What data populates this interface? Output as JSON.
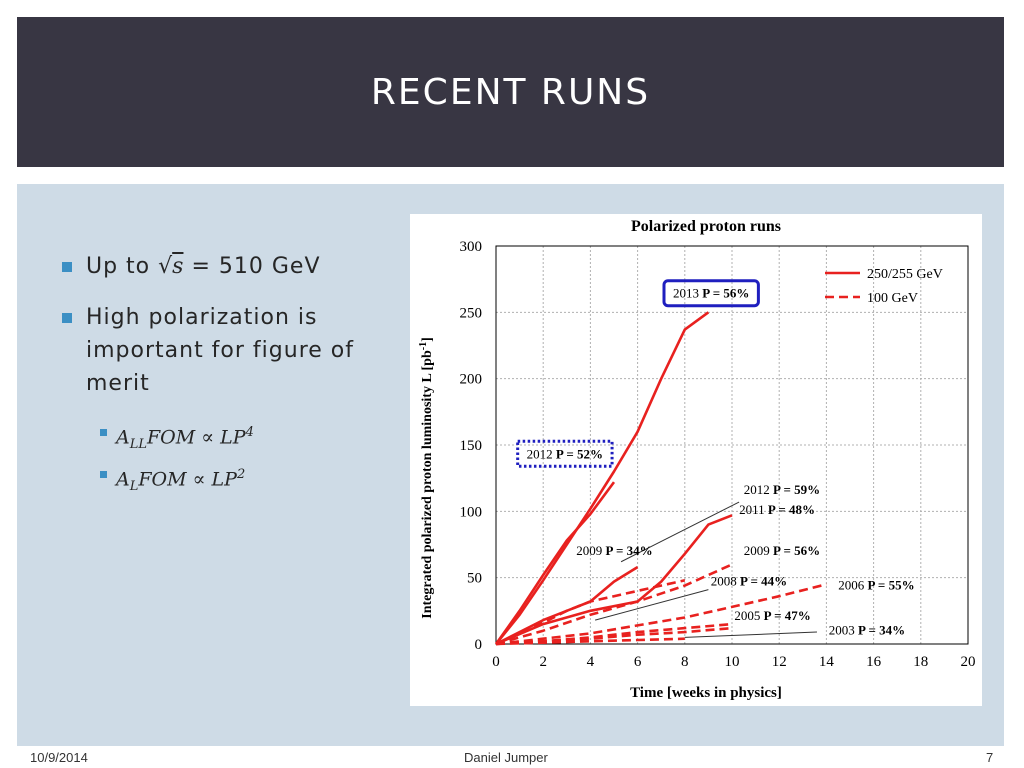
{
  "slide": {
    "title": "Recent Runs",
    "bullets": {
      "b1_prefix": "Up to ",
      "b1_sqrt_arg": "s",
      "b1_rest": " = 510 GeV",
      "b2_text": "High polarization is important for figure of merit",
      "sub1": {
        "var": "A",
        "sub": "LL",
        "mid": "FOM ∝ LP",
        "exp": "4"
      },
      "sub2": {
        "var": "A",
        "sub": "L",
        "mid": "FOM  ∝ LP",
        "exp": "2"
      }
    },
    "footer": {
      "date": "10/9/2014",
      "author": "Daniel Jumper",
      "page": "7"
    }
  },
  "chart_data": {
    "type": "line",
    "title": "Polarized proton runs",
    "xlabel": "Time [weeks in physics]",
    "ylabel": "Integrated polarized proton luminosity L [pb",
    "ylabel_sup": "-1",
    "ylabel_end": "]",
    "xlim": [
      0,
      20
    ],
    "ylim": [
      0,
      300
    ],
    "xticks": [
      0,
      2,
      4,
      6,
      8,
      10,
      12,
      14,
      16,
      18,
      20
    ],
    "yticks": [
      0,
      50,
      100,
      150,
      200,
      250,
      300
    ],
    "grid": true,
    "legend": {
      "placement": "top-right",
      "entries": [
        {
          "label": "250/255 GeV",
          "style": "solid"
        },
        {
          "label": "100 GeV",
          "style": "dashed"
        }
      ]
    },
    "color": "#e8211f",
    "series": [
      {
        "year": "2013",
        "style": "solid",
        "x": [
          0,
          1,
          2,
          3,
          4,
          5,
          6,
          7,
          8,
          9
        ],
        "y": [
          0,
          22,
          48,
          75,
          102,
          130,
          160,
          200,
          237,
          250
        ]
      },
      {
        "year": "2012",
        "style": "solid",
        "x": [
          0,
          1,
          2,
          3,
          4,
          5
        ],
        "y": [
          0,
          25,
          52,
          78,
          98,
          122
        ]
      },
      {
        "year": "2011",
        "style": "solid",
        "x": [
          0,
          2,
          4,
          6,
          7,
          8,
          9,
          10
        ],
        "y": [
          0,
          15,
          25,
          32,
          47,
          68,
          90,
          97
        ]
      },
      {
        "year": "2009",
        "style": "solid",
        "x": [
          0,
          2,
          3,
          4,
          5,
          6
        ],
        "y": [
          0,
          18,
          25,
          32,
          47,
          58
        ]
      },
      {
        "year": "2012",
        "style": "dashed",
        "x": [
          0,
          2,
          4,
          6,
          8,
          10
        ],
        "y": [
          0,
          10,
          22,
          32,
          44,
          60
        ]
      },
      {
        "year": "2009",
        "style": "dashed",
        "x": [
          0,
          1,
          2,
          3,
          4,
          6,
          8
        ],
        "y": [
          0,
          8,
          16,
          25,
          32,
          40,
          48
        ]
      },
      {
        "year": "2006",
        "style": "dashed",
        "x": [
          0,
          2,
          4,
          6,
          8,
          10,
          12,
          14
        ],
        "y": [
          0,
          4,
          8,
          14,
          20,
          28,
          36,
          45
        ]
      },
      {
        "year": "2008",
        "style": "dashed",
        "x": [
          0,
          2,
          4,
          6,
          8,
          10
        ],
        "y": [
          0,
          2,
          5,
          9,
          12,
          15
        ]
      },
      {
        "year": "2005",
        "style": "dashed",
        "x": [
          0,
          2,
          4,
          6,
          8,
          10
        ],
        "y": [
          0,
          2,
          4,
          7,
          9,
          12
        ]
      },
      {
        "year": "2003",
        "style": "dashed",
        "x": [
          0,
          2,
          4,
          6,
          8
        ],
        "y": [
          0,
          1,
          2,
          3,
          4
        ]
      }
    ],
    "annotations": [
      {
        "year": "2013",
        "pol": "P = 56%",
        "x": 7.5,
        "y": 261,
        "box": "solid"
      },
      {
        "year": "2012",
        "pol": "P = 52%",
        "x": 1.3,
        "y": 140,
        "box": "dotted"
      },
      {
        "year": "2012",
        "pol": "P = 59%",
        "x": 10.5,
        "y": 113,
        "leader": [
          [
            10.3,
            107
          ],
          [
            5.3,
            62
          ]
        ]
      },
      {
        "year": "2011",
        "pol": "P = 48%",
        "x": 10.3,
        "y": 98
      },
      {
        "year": "2009",
        "pol": "P = 34%",
        "x": 3.4,
        "y": 67
      },
      {
        "year": "2009",
        "pol": "P = 56%",
        "x": 10.5,
        "y": 67
      },
      {
        "year": "2008",
        "pol": "P = 44%",
        "x": 9.1,
        "y": 44,
        "leader": [
          [
            9.0,
            41
          ],
          [
            4.2,
            18
          ]
        ]
      },
      {
        "year": "2006",
        "pol": "P = 55%",
        "x": 14.5,
        "y": 41
      },
      {
        "year": "2005",
        "pol": "P = 47%",
        "x": 10.1,
        "y": 18
      },
      {
        "year": "2003",
        "pol": "P = 34%",
        "x": 14.1,
        "y": 7,
        "leader": [
          [
            13.6,
            9
          ],
          [
            8.0,
            5
          ]
        ]
      }
    ]
  }
}
